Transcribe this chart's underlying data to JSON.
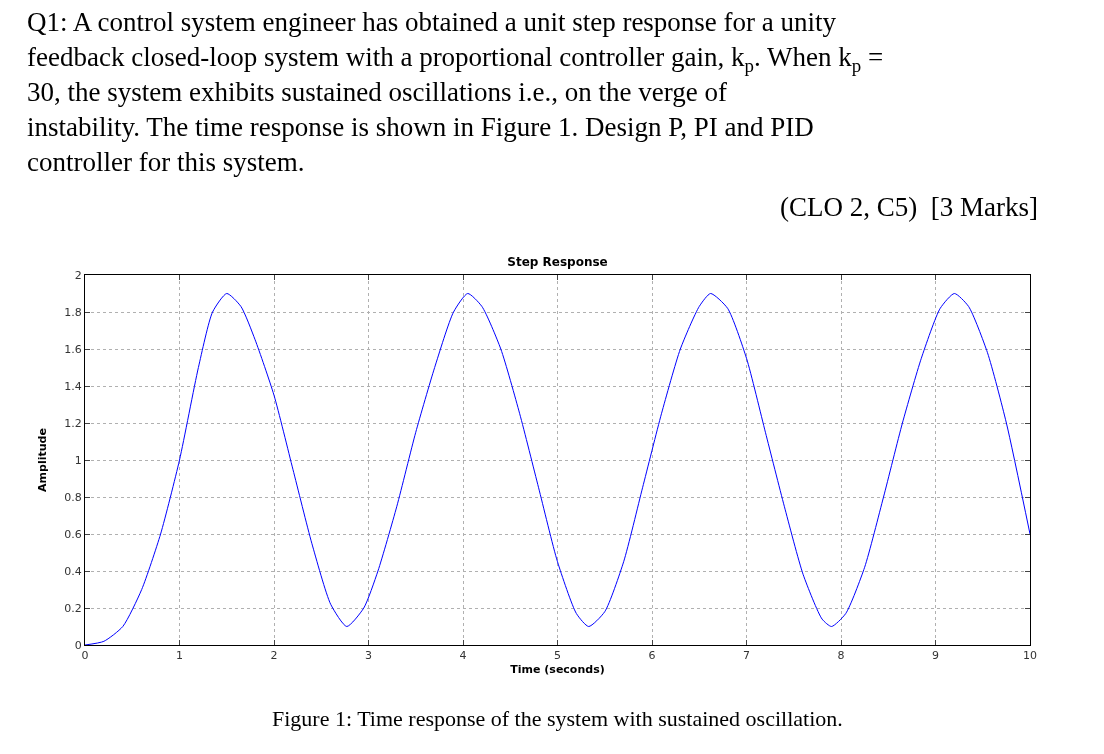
{
  "chart_data": {
    "type": "line",
    "title": "Step Response",
    "xlabel": "Time (seconds)",
    "ylabel": "Amplitude",
    "annotations": [
      "Q1: A control system engineer has obtained a unit step response for a unity feedback closed-loop system with a proportional controller gain, k$_{p}$. When k$_{p}$ = 30, the system exhibits sustained oscillations i.e., on the verge of instability. The time response is shown in Figure 1. Design P, PI and PID controller for this system.",
      "(CLO 2, C5)  [3 Marks]",
      "Figure 1: Time response of the system with sustained oscillation."
    ],
    "x": [
      0,
      0.2,
      0.4,
      0.6,
      0.8,
      1.0,
      1.2,
      1.35,
      1.5,
      1.65,
      1.8,
      2.0,
      2.2,
      2.4,
      2.6,
      2.77,
      2.95,
      3.1,
      3.3,
      3.5,
      3.7,
      3.9,
      4.05,
      4.2,
      4.4,
      4.6,
      4.8,
      5.0,
      5.2,
      5.33,
      5.5,
      5.7,
      5.9,
      6.1,
      6.3,
      6.5,
      6.62,
      6.8,
      7.0,
      7.2,
      7.4,
      7.6,
      7.8,
      7.9,
      8.05,
      8.25,
      8.45,
      8.65,
      8.85,
      9.05,
      9.2,
      9.35,
      9.55,
      9.75,
      10
    ],
    "series": [
      {
        "color": "#0000ff",
        "values": [
          0,
          0.02,
          0.1,
          0.3,
          0.6,
          1.0,
          1.5,
          1.8,
          1.9,
          1.83,
          1.65,
          1.35,
          0.95,
          0.55,
          0.22,
          0.1,
          0.2,
          0.4,
          0.75,
          1.15,
          1.5,
          1.8,
          1.9,
          1.83,
          1.6,
          1.25,
          0.85,
          0.45,
          0.17,
          0.1,
          0.18,
          0.45,
          0.85,
          1.25,
          1.6,
          1.83,
          1.9,
          1.82,
          1.55,
          1.15,
          0.75,
          0.38,
          0.14,
          0.1,
          0.17,
          0.42,
          0.8,
          1.2,
          1.55,
          1.82,
          1.9,
          1.83,
          1.58,
          1.2,
          0.6
        ]
      }
    ],
    "xlim": [
      0,
      10
    ],
    "xticks": [
      0,
      1,
      2,
      3,
      4,
      5,
      6,
      7,
      8,
      9,
      10
    ],
    "ylim": [
      0,
      2
    ],
    "yticks": [
      0,
      0.2,
      0.4,
      0.6,
      0.8,
      1,
      1.2,
      1.4,
      1.6,
      1.8,
      2
    ],
    "grid": true,
    "line_style": "solid"
  }
}
